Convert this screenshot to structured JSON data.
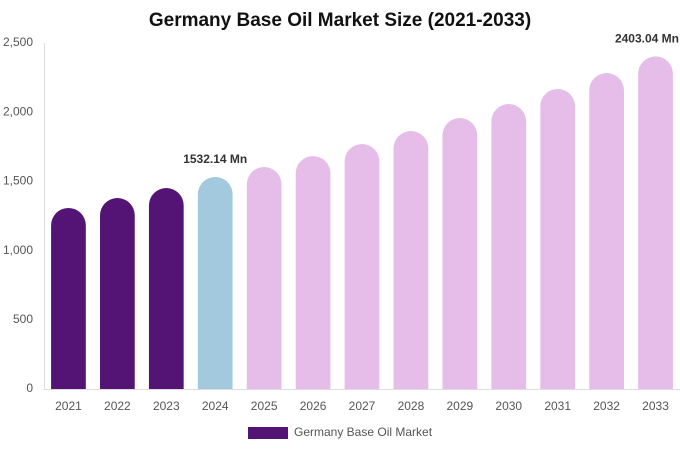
{
  "chart_data": {
    "type": "bar",
    "title": "Germany Base Oil Market Size (2021-2033)",
    "categories": [
      "2021",
      "2022",
      "2023",
      "2024",
      "2025",
      "2026",
      "2027",
      "2028",
      "2029",
      "2030",
      "2031",
      "2032",
      "2033"
    ],
    "series": [
      {
        "name": "Germany Base Oil Market",
        "color": "#541475",
        "colors": [
          "#541475",
          "#541475",
          "#541475",
          "#a3c9de",
          "#e6bce9",
          "#e6bce9",
          "#e6bce9",
          "#e6bce9",
          "#e6bce9",
          "#e6bce9",
          "#e6bce9",
          "#e6bce9",
          "#e6bce9"
        ],
        "values": [
          1308,
          1380,
          1452,
          1532.14,
          1604,
          1683,
          1770,
          1864,
          1958,
          2059,
          2168,
          2283,
          2403.04
        ],
        "value_labels": [
          null,
          null,
          null,
          "1532.14 Mn",
          null,
          null,
          null,
          null,
          null,
          null,
          null,
          null,
          "2403.04 Mn"
        ]
      }
    ],
    "ylim": [
      0,
      2500
    ],
    "yticks": [
      0,
      500,
      {
        "value": 1000,
        "label": "1,000"
      },
      {
        "value": 1500,
        "label": "1,500"
      },
      {
        "value": 2000,
        "label": "2,000"
      },
      {
        "value": 2500,
        "label": "2,500"
      }
    ],
    "grid": false
  }
}
